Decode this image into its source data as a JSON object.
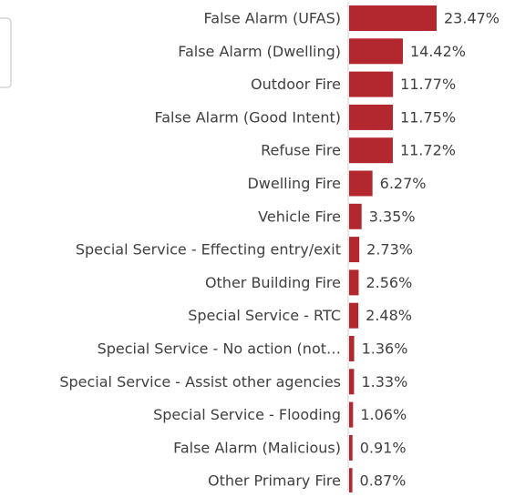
{
  "chart_data": {
    "type": "barh",
    "categories": [
      "False Alarm (UFAS)",
      "False Alarm (Dwelling)",
      "Outdoor Fire",
      "False Alarm (Good Intent)",
      "Refuse Fire",
      "Dwelling Fire",
      "Vehicle Fire",
      "Special Service - Effecting entry/exit",
      "Other Building Fire",
      "Special Service - RTC",
      "Special Service - No action (not…",
      "Special Service - Assist other agencies",
      "Special Service - Flooding",
      "False Alarm (Malicious)",
      "Other Primary Fire"
    ],
    "values": [
      23.47,
      14.42,
      11.77,
      11.75,
      11.72,
      6.27,
      3.35,
      2.73,
      2.56,
      2.48,
      1.36,
      1.33,
      1.06,
      0.91,
      0.87
    ],
    "value_labels": [
      "23.47%",
      "14.42%",
      "11.77%",
      "11.75%",
      "11.72%",
      "6.27%",
      "3.35%",
      "2.73%",
      "2.56%",
      "2.48%",
      "1.36%",
      "1.33%",
      "1.06%",
      "0.91%",
      "0.87%"
    ],
    "color": "#b2282e"
  }
}
